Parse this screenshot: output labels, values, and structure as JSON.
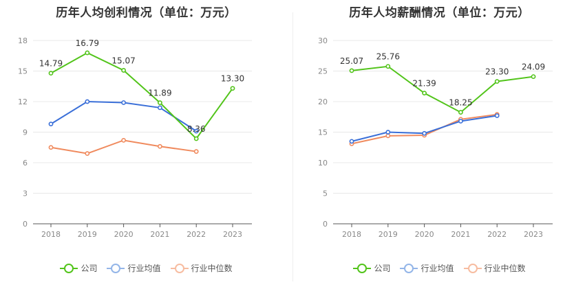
{
  "charts": [
    {
      "title": "历年人均创利情况（单位：万元）",
      "legend": [
        "公司",
        "行业均值",
        "行业中位数"
      ]
    },
    {
      "title": "历年人均薪酬情况（单位：万元）",
      "legend": [
        "公司",
        "行业均值",
        "行业中位数"
      ]
    }
  ],
  "colors": {
    "company": "#52c41a",
    "industry_avg": "#3a6fd8",
    "industry_median": "#f08a5d",
    "legend_company": "#52c41a",
    "legend_avg": "#93b5e8",
    "legend_median": "#f7bca0"
  },
  "chart_data": [
    {
      "type": "line",
      "title": "历年人均创利情况（单位：万元）",
      "x": [
        "2018",
        "2019",
        "2020",
        "2021",
        "2022",
        "2023"
      ],
      "ylim": [
        0,
        18
      ],
      "yticks": [
        0,
        3,
        6,
        9,
        12,
        15,
        18
      ],
      "grid": true,
      "legend_position": "bottom",
      "series": [
        {
          "name": "公司",
          "values": [
            14.79,
            16.79,
            15.07,
            11.89,
            8.36,
            13.3
          ],
          "labels": [
            "14.79",
            "16.79",
            "15.07",
            "11.89",
            "8.36",
            "13.30"
          ]
        },
        {
          "name": "行业均值",
          "values": [
            9.8,
            12.0,
            11.9,
            11.4,
            9.1,
            null
          ]
        },
        {
          "name": "行业中位数",
          "values": [
            7.5,
            6.9,
            8.2,
            7.6,
            7.1,
            null
          ]
        }
      ]
    },
    {
      "type": "line",
      "title": "历年人均薪酬情况（单位：万元）",
      "x": [
        "2018",
        "2019",
        "2020",
        "2021",
        "2022",
        "2023"
      ],
      "ylim": [
        0,
        30
      ],
      "yticks": [
        0,
        5,
        10,
        15,
        20,
        25,
        30
      ],
      "grid": true,
      "legend_position": "bottom",
      "series": [
        {
          "name": "公司",
          "values": [
            25.07,
            25.76,
            21.39,
            18.25,
            23.3,
            24.09
          ],
          "labels": [
            "25.07",
            "25.76",
            "21.39",
            "18.25",
            "23.30",
            "24.09"
          ]
        },
        {
          "name": "行业均值",
          "values": [
            13.5,
            15.0,
            14.8,
            16.8,
            17.7,
            null
          ]
        },
        {
          "name": "行业中位数",
          "values": [
            13.1,
            14.4,
            14.5,
            17.1,
            17.9,
            null
          ]
        }
      ]
    }
  ]
}
